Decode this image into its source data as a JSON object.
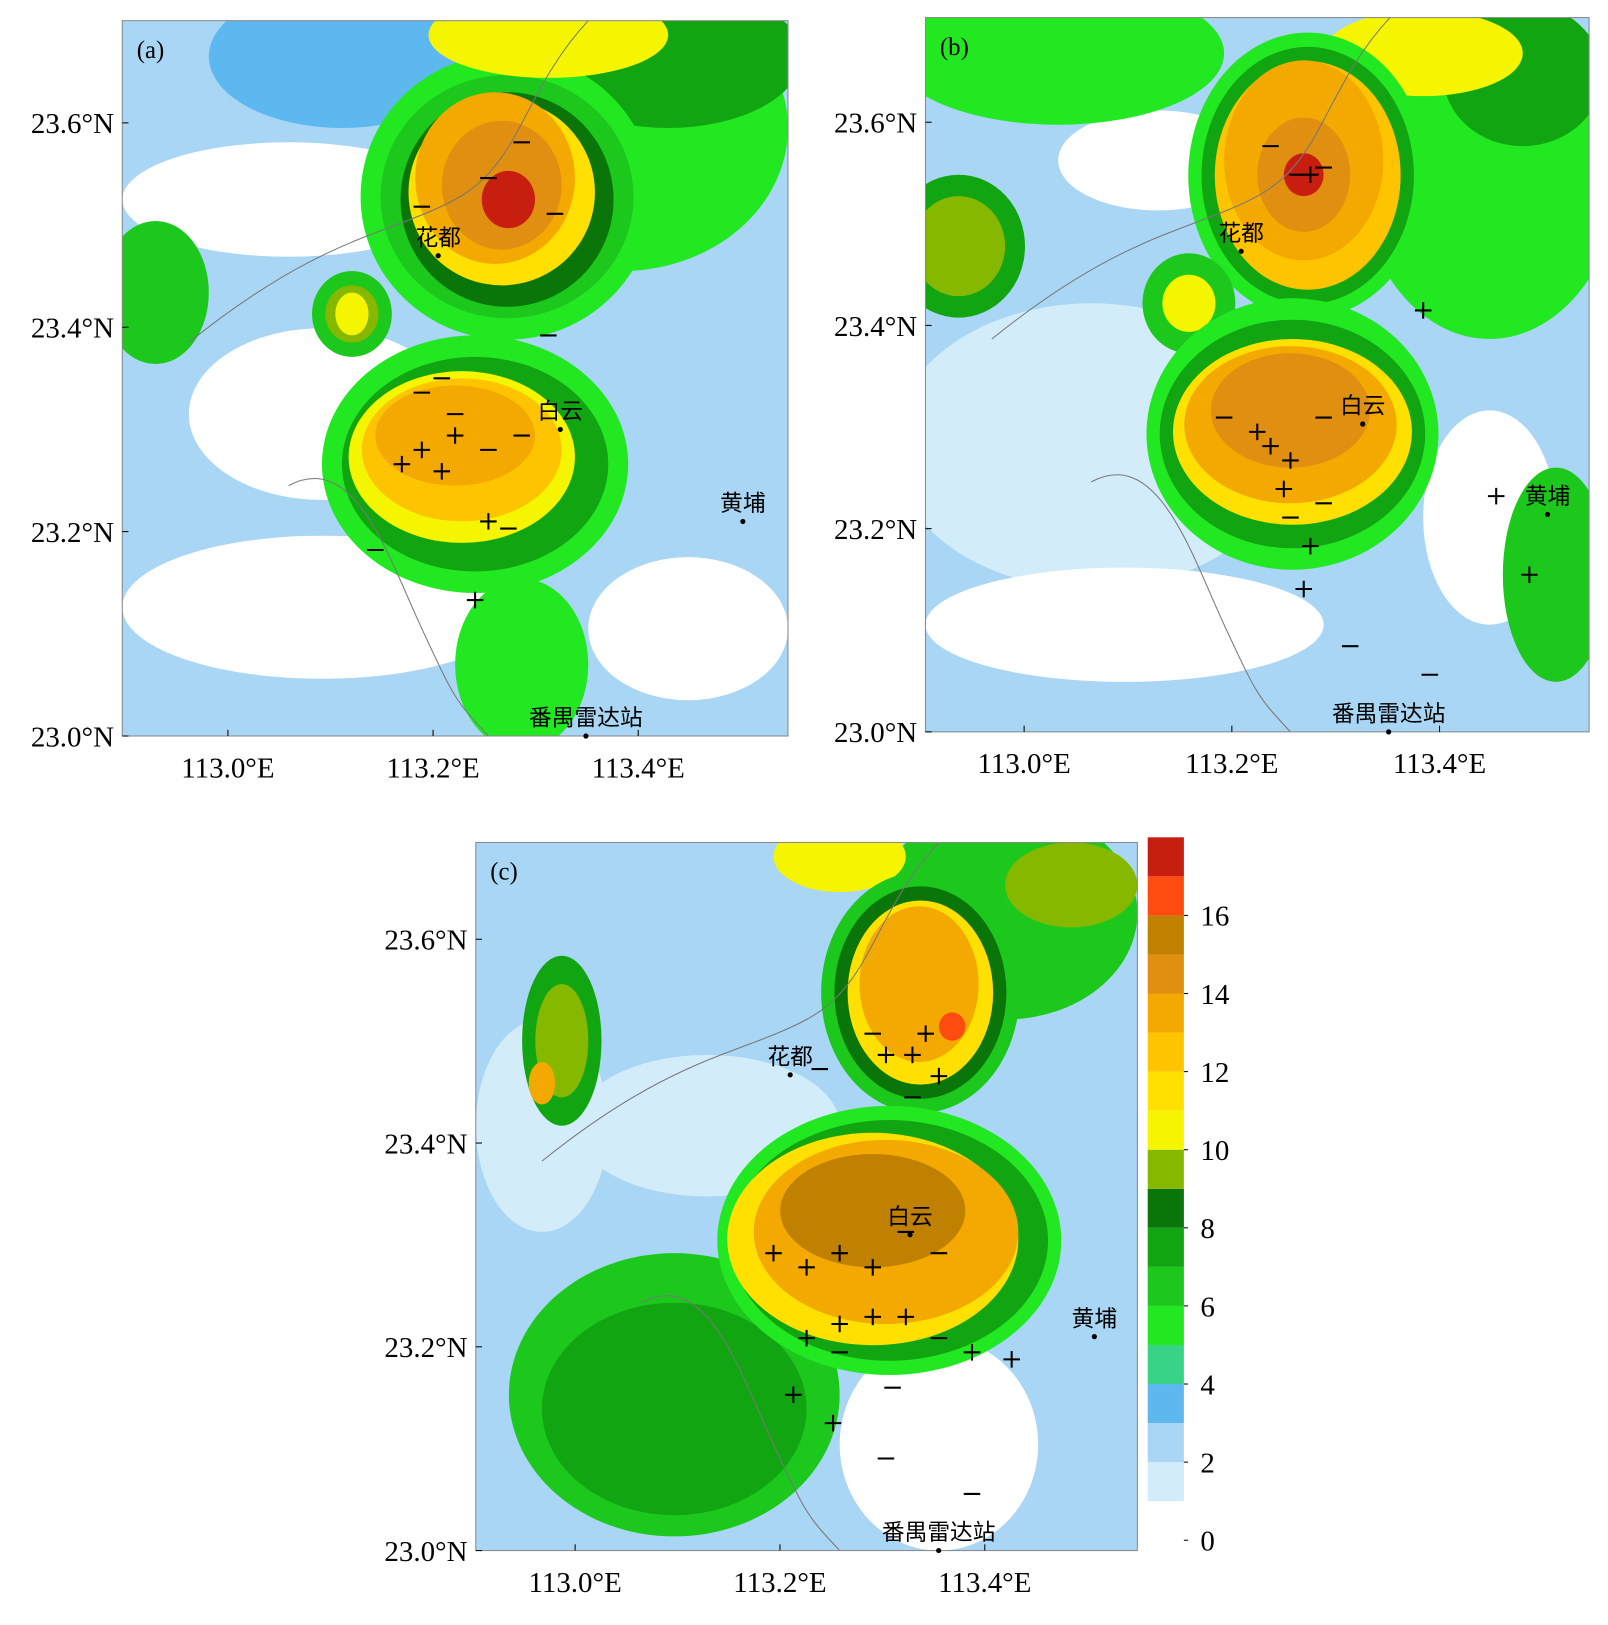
{
  "panels": [
    {
      "label": "(a)",
      "xlim": [
        112.897,
        113.546
      ],
      "ylim": [
        23.0,
        23.7
      ],
      "xticks": [
        {
          "value": 113.0,
          "label": "113.0°E"
        },
        {
          "value": 113.2,
          "label": "113.2°E"
        },
        {
          "value": 113.4,
          "label": "113.4°E"
        }
      ],
      "yticks": [
        {
          "value": 23.0,
          "label": "23.0°N"
        },
        {
          "value": 23.2,
          "label": "23.2°N"
        },
        {
          "value": 23.4,
          "label": "23.4°N"
        },
        {
          "value": 23.6,
          "label": "23.6°N"
        }
      ],
      "places": [
        {
          "name": "花都",
          "lon": 113.205,
          "lat": 23.47
        },
        {
          "name": "白云",
          "lon": 113.324,
          "lat": 23.3
        },
        {
          "name": "黄埔",
          "lon": 113.502,
          "lat": 23.21
        },
        {
          "name": "番禺雷达站",
          "lon": 113.349,
          "lat": 23.0
        }
      ]
    },
    {
      "label": "(b)",
      "xlim": [
        112.905,
        113.544
      ],
      "ylim": [
        23.0,
        23.703
      ],
      "xticks": [
        {
          "value": 113.0,
          "label": "113.0°E"
        },
        {
          "value": 113.2,
          "label": "113.2°E"
        },
        {
          "value": 113.4,
          "label": "113.4°E"
        }
      ],
      "yticks": [
        {
          "value": 23.0,
          "label": "23.0°N"
        },
        {
          "value": 23.2,
          "label": "23.2°N"
        },
        {
          "value": 23.4,
          "label": "23.4°N"
        },
        {
          "value": 23.6,
          "label": "23.6°N"
        }
      ],
      "places": [
        {
          "name": "花都",
          "lon": 113.209,
          "lat": 23.473
        },
        {
          "name": "白云",
          "lon": 113.326,
          "lat": 23.303
        },
        {
          "name": "黄埔",
          "lon": 113.504,
          "lat": 23.214
        },
        {
          "name": "番禺雷达站",
          "lon": 113.351,
          "lat": 23.0
        }
      ]
    },
    {
      "label": "(c)",
      "xlim": [
        112.903,
        113.549
      ],
      "ylim": [
        23.0,
        23.695
      ],
      "xticks": [
        {
          "value": 113.0,
          "label": "113.0°E"
        },
        {
          "value": 113.2,
          "label": "113.2°E"
        },
        {
          "value": 113.4,
          "label": "113.4°E"
        }
      ],
      "yticks": [
        {
          "value": 23.0,
          "label": "23.0°N"
        },
        {
          "value": 23.2,
          "label": "23.2°N"
        },
        {
          "value": 23.4,
          "label": "23.4°N"
        },
        {
          "value": 23.6,
          "label": "23.6°N"
        }
      ],
      "places": [
        {
          "name": "花都",
          "lon": 113.21,
          "lat": 23.467
        },
        {
          "name": "白云",
          "lon": 113.327,
          "lat": 23.31
        },
        {
          "name": "黄埔",
          "lon": 113.507,
          "lat": 23.21
        },
        {
          "name": "番禺雷达站",
          "lon": 113.355,
          "lat": 23.0
        }
      ]
    }
  ],
  "colorbar": {
    "lim": [
      0,
      18
    ],
    "ticks": [
      0,
      2,
      4,
      6,
      8,
      10,
      12,
      14,
      16
    ],
    "colors": [
      "#ffffff",
      "#d2ecfa",
      "#a9d6f5",
      "#5db8f0",
      "#36d484",
      "#22e822",
      "#1bc81b",
      "#12a512",
      "#0a760a",
      "#86b800",
      "#f5f500",
      "#ffe000",
      "#ffc400",
      "#f3a900",
      "#e08f10",
      "#c08000",
      "#ff4a10",
      "#c81e10"
    ]
  }
}
